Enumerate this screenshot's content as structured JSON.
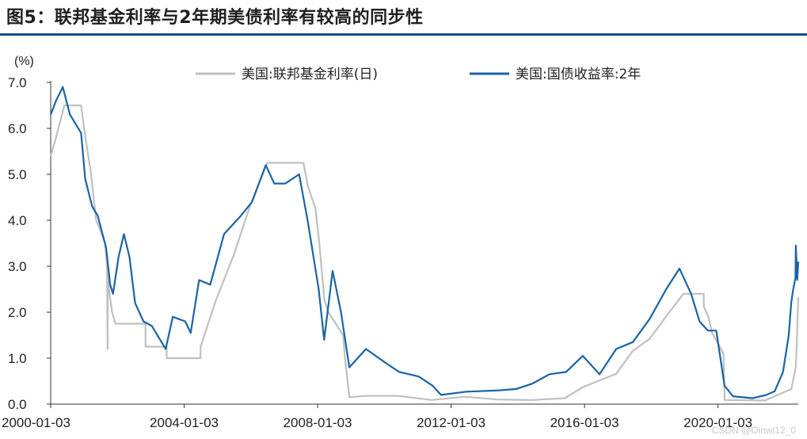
{
  "title": "图5：联邦基金利率与2年期美债利率有较高的同步性",
  "watermark": "CSDN @Oinwl12_0",
  "colors": {
    "fed_funds": "#c0c0c0",
    "treasury_2y": "#1a64a6",
    "title_rule": "#0e4e8c"
  },
  "chart_data": {
    "type": "line",
    "xlabel": "",
    "ylabel": "(%)",
    "ylim": [
      0,
      7
    ],
    "yticks": [
      "0.0",
      "1.0",
      "2.0",
      "3.0",
      "4.0",
      "5.0",
      "6.0",
      "7.0"
    ],
    "xlim": [
      "2000-01-03",
      "2022-05-31"
    ],
    "xticks": [
      "2000-01-03",
      "2004-01-03",
      "2008-01-03",
      "2012-01-03",
      "2016-01-03",
      "2020-01-03"
    ],
    "grid": false,
    "legend": "top",
    "series": [
      {
        "name": "美国:联邦基金利率(日)",
        "color": "#c0c0c0",
        "points": [
          [
            "2000-01-03",
            5.4
          ],
          [
            "2000-03-01",
            5.8
          ],
          [
            "2000-06-01",
            6.5
          ],
          [
            "2000-12-01",
            6.5
          ],
          [
            "2001-01-03",
            6.0
          ],
          [
            "2001-03-20",
            5.0
          ],
          [
            "2001-05-15",
            4.0
          ],
          [
            "2001-06-27",
            3.8
          ],
          [
            "2001-08-21",
            3.5
          ],
          [
            "2001-09-10",
            3.0
          ],
          [
            "2001-09-17",
            1.2
          ],
          [
            "2001-09-20",
            3.0
          ],
          [
            "2001-10-02",
            2.5
          ],
          [
            "2001-11-06",
            2.0
          ],
          [
            "2001-12-11",
            1.75
          ],
          [
            "2002-06-01",
            1.75
          ],
          [
            "2002-11-06",
            1.75
          ],
          [
            "2002-11-07",
            1.25
          ],
          [
            "2003-06-25",
            1.25
          ],
          [
            "2003-06-26",
            1.0
          ],
          [
            "2004-06-30",
            1.0
          ],
          [
            "2004-07-01",
            1.25
          ],
          [
            "2004-12-14",
            2.25
          ],
          [
            "2005-06-30",
            3.25
          ],
          [
            "2005-12-13",
            4.25
          ],
          [
            "2006-06-29",
            5.25
          ],
          [
            "2007-08-01",
            5.25
          ],
          [
            "2007-09-18",
            4.75
          ],
          [
            "2007-12-11",
            4.25
          ],
          [
            "2008-01-22",
            3.5
          ],
          [
            "2008-03-18",
            2.25
          ],
          [
            "2008-04-30",
            2.0
          ],
          [
            "2008-10-08",
            1.5
          ],
          [
            "2008-10-29",
            1.0
          ],
          [
            "2008-12-16",
            0.15
          ],
          [
            "2009-06-01",
            0.18
          ],
          [
            "2010-06-01",
            0.18
          ],
          [
            "2011-06-01",
            0.09
          ],
          [
            "2012-06-01",
            0.16
          ],
          [
            "2013-06-01",
            0.1
          ],
          [
            "2014-06-01",
            0.09
          ],
          [
            "2015-06-01",
            0.13
          ],
          [
            "2015-12-17",
            0.37
          ],
          [
            "2016-12-15",
            0.66
          ],
          [
            "2017-03-16",
            0.91
          ],
          [
            "2017-06-15",
            1.16
          ],
          [
            "2017-12-14",
            1.42
          ],
          [
            "2018-03-22",
            1.68
          ],
          [
            "2018-06-14",
            1.91
          ],
          [
            "2018-09-27",
            2.18
          ],
          [
            "2018-12-20",
            2.4
          ],
          [
            "2019-07-31",
            2.4
          ],
          [
            "2019-08-01",
            2.13
          ],
          [
            "2019-09-19",
            1.9
          ],
          [
            "2019-10-31",
            1.55
          ],
          [
            "2020-03-03",
            1.1
          ],
          [
            "2020-03-16",
            0.09
          ],
          [
            "2021-06-01",
            0.08
          ],
          [
            "2022-03-17",
            0.33
          ],
          [
            "2022-05-05",
            0.83
          ],
          [
            "2022-05-31",
            2.33
          ]
        ]
      },
      {
        "name": "美国:国债收益率:2年",
        "color": "#1a64a6",
        "points": [
          [
            "2000-01-03",
            6.3
          ],
          [
            "2000-03-01",
            6.6
          ],
          [
            "2000-05-15",
            6.9
          ],
          [
            "2000-08-01",
            6.3
          ],
          [
            "2000-12-01",
            5.9
          ],
          [
            "2001-01-15",
            4.9
          ],
          [
            "2001-04-01",
            4.3
          ],
          [
            "2001-06-01",
            4.1
          ],
          [
            "2001-09-01",
            3.4
          ],
          [
            "2001-10-15",
            2.6
          ],
          [
            "2001-11-15",
            2.4
          ],
          [
            "2002-01-15",
            3.2
          ],
          [
            "2002-03-15",
            3.7
          ],
          [
            "2002-05-15",
            3.2
          ],
          [
            "2002-07-15",
            2.2
          ],
          [
            "2002-10-15",
            1.8
          ],
          [
            "2003-01-15",
            1.7
          ],
          [
            "2003-06-15",
            1.2
          ],
          [
            "2003-09-01",
            1.9
          ],
          [
            "2004-01-15",
            1.8
          ],
          [
            "2004-03-15",
            1.55
          ],
          [
            "2004-06-15",
            2.7
          ],
          [
            "2004-10-15",
            2.6
          ],
          [
            "2005-03-15",
            3.7
          ],
          [
            "2005-09-15",
            4.1
          ],
          [
            "2006-01-15",
            4.4
          ],
          [
            "2006-06-15",
            5.2
          ],
          [
            "2006-09-15",
            4.8
          ],
          [
            "2007-01-15",
            4.8
          ],
          [
            "2007-06-15",
            5.0
          ],
          [
            "2007-09-15",
            4.0
          ],
          [
            "2008-01-15",
            2.5
          ],
          [
            "2008-03-15",
            1.4
          ],
          [
            "2008-06-15",
            2.9
          ],
          [
            "2008-09-15",
            2.0
          ],
          [
            "2008-12-15",
            0.8
          ],
          [
            "2009-06-15",
            1.2
          ],
          [
            "2010-01-15",
            0.9
          ],
          [
            "2010-06-15",
            0.7
          ],
          [
            "2011-01-15",
            0.6
          ],
          [
            "2011-06-15",
            0.4
          ],
          [
            "2011-09-15",
            0.2
          ],
          [
            "2012-06-15",
            0.27
          ],
          [
            "2013-06-15",
            0.3
          ],
          [
            "2013-12-15",
            0.33
          ],
          [
            "2014-06-15",
            0.45
          ],
          [
            "2014-12-15",
            0.65
          ],
          [
            "2015-06-15",
            0.7
          ],
          [
            "2015-12-15",
            1.05
          ],
          [
            "2016-06-15",
            0.65
          ],
          [
            "2016-12-15",
            1.2
          ],
          [
            "2017-06-15",
            1.35
          ],
          [
            "2017-12-15",
            1.85
          ],
          [
            "2018-06-15",
            2.5
          ],
          [
            "2018-11-08",
            2.95
          ],
          [
            "2019-03-15",
            2.4
          ],
          [
            "2019-06-15",
            1.8
          ],
          [
            "2019-09-15",
            1.6
          ],
          [
            "2019-12-15",
            1.6
          ],
          [
            "2020-03-15",
            0.4
          ],
          [
            "2020-06-15",
            0.17
          ],
          [
            "2021-01-15",
            0.13
          ],
          [
            "2021-06-15",
            0.2
          ],
          [
            "2021-09-15",
            0.28
          ],
          [
            "2021-12-15",
            0.7
          ],
          [
            "2022-02-15",
            1.5
          ],
          [
            "2022-03-15",
            2.2
          ],
          [
            "2022-04-01",
            2.45
          ],
          [
            "2022-04-30",
            2.75
          ],
          [
            "2022-05-04",
            3.45
          ],
          [
            "2022-05-20",
            2.7
          ],
          [
            "2022-05-31",
            3.1
          ]
        ]
      }
    ]
  }
}
